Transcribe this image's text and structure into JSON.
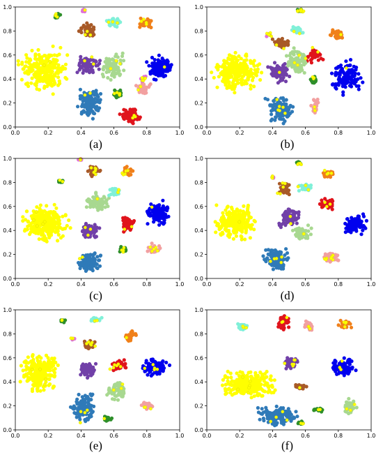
{
  "colors": {
    "yellow": "#ffff00",
    "blue": "#0000ee",
    "steel": "#2f7ab8",
    "purple": "#7140a8",
    "red": "#e0141c",
    "orange": "#f0801a",
    "brown": "#a85a28",
    "lightgreen": "#a8d890",
    "green": "#2e8f2a",
    "pink": "#f2a0a0",
    "aqua": "#80f0d8",
    "magenta": "#e070d8"
  },
  "chart_data": [
    {
      "type": "scatter",
      "caption": "(a)",
      "xlim": [
        0,
        1
      ],
      "ylim": [
        0,
        1
      ],
      "xticks": [
        "0.0",
        "0.2",
        "0.4",
        "0.6",
        "0.8",
        "1.0"
      ],
      "yticks": [
        "0.0",
        "0.2",
        "0.4",
        "0.6",
        "0.8",
        "1.0"
      ],
      "clusters": [
        {
          "color": "yellow",
          "cx": 0.17,
          "cy": 0.47,
          "rx": 0.17,
          "ry": 0.22,
          "n": 260
        },
        {
          "color": "blue",
          "cx": 0.88,
          "cy": 0.5,
          "rx": 0.1,
          "ry": 0.12,
          "n": 120
        },
        {
          "color": "steel",
          "cx": 0.45,
          "cy": 0.2,
          "rx": 0.09,
          "ry": 0.15,
          "n": 130
        },
        {
          "color": "purple",
          "cx": 0.44,
          "cy": 0.52,
          "rx": 0.08,
          "ry": 0.1,
          "n": 90
        },
        {
          "color": "red",
          "cx": 0.7,
          "cy": 0.09,
          "rx": 0.09,
          "ry": 0.07,
          "n": 70
        },
        {
          "color": "orange",
          "cx": 0.79,
          "cy": 0.87,
          "rx": 0.05,
          "ry": 0.06,
          "n": 40
        },
        {
          "color": "brown",
          "cx": 0.44,
          "cy": 0.8,
          "rx": 0.06,
          "ry": 0.08,
          "n": 50
        },
        {
          "color": "lightgreen",
          "cx": 0.6,
          "cy": 0.5,
          "rx": 0.08,
          "ry": 0.14,
          "n": 80
        },
        {
          "color": "green",
          "cx": 0.62,
          "cy": 0.28,
          "rx": 0.04,
          "ry": 0.04,
          "n": 20
        },
        {
          "color": "pink",
          "cx": 0.78,
          "cy": 0.32,
          "rx": 0.05,
          "ry": 0.06,
          "n": 35
        },
        {
          "color": "aqua",
          "cx": 0.6,
          "cy": 0.87,
          "rx": 0.06,
          "ry": 0.05,
          "n": 35
        },
        {
          "color": "magenta",
          "cx": 0.42,
          "cy": 0.97,
          "rx": 0.02,
          "ry": 0.02,
          "n": 8
        },
        {
          "color": "green",
          "cx": 0.25,
          "cy": 0.93,
          "rx": 0.03,
          "ry": 0.03,
          "n": 12
        },
        {
          "color": "magenta",
          "cx": 0.78,
          "cy": 0.4,
          "rx": 0.02,
          "ry": 0.03,
          "n": 8
        }
      ]
    },
    {
      "type": "scatter",
      "caption": "(b)",
      "xlim": [
        0,
        1
      ],
      "ylim": [
        0,
        1
      ],
      "xticks": [
        "0.0",
        "0.2",
        "0.4",
        "0.6",
        "0.8",
        "1.0"
      ],
      "yticks": [
        "0.0",
        "0.2",
        "0.4",
        "0.6",
        "0.8",
        "1.0"
      ],
      "clusters": [
        {
          "color": "yellow",
          "cx": 0.18,
          "cy": 0.46,
          "rx": 0.17,
          "ry": 0.2,
          "n": 260
        },
        {
          "color": "blue",
          "cx": 0.85,
          "cy": 0.42,
          "rx": 0.12,
          "ry": 0.17,
          "n": 130
        },
        {
          "color": "steel",
          "cx": 0.45,
          "cy": 0.15,
          "rx": 0.1,
          "ry": 0.14,
          "n": 130
        },
        {
          "color": "purple",
          "cx": 0.44,
          "cy": 0.46,
          "rx": 0.08,
          "ry": 0.1,
          "n": 90
        },
        {
          "color": "red",
          "cx": 0.66,
          "cy": 0.6,
          "rx": 0.06,
          "ry": 0.07,
          "n": 50
        },
        {
          "color": "orange",
          "cx": 0.79,
          "cy": 0.77,
          "rx": 0.05,
          "ry": 0.05,
          "n": 35
        },
        {
          "color": "brown",
          "cx": 0.45,
          "cy": 0.7,
          "rx": 0.07,
          "ry": 0.06,
          "n": 50
        },
        {
          "color": "lightgreen",
          "cx": 0.55,
          "cy": 0.55,
          "rx": 0.07,
          "ry": 0.15,
          "n": 80
        },
        {
          "color": "green",
          "cx": 0.65,
          "cy": 0.39,
          "rx": 0.03,
          "ry": 0.05,
          "n": 20
        },
        {
          "color": "pink",
          "cx": 0.66,
          "cy": 0.17,
          "rx": 0.03,
          "ry": 0.08,
          "n": 30
        },
        {
          "color": "aqua",
          "cx": 0.55,
          "cy": 0.81,
          "rx": 0.05,
          "ry": 0.04,
          "n": 25
        },
        {
          "color": "green",
          "cx": 0.57,
          "cy": 0.97,
          "rx": 0.03,
          "ry": 0.02,
          "n": 10
        },
        {
          "color": "magenta",
          "cx": 0.38,
          "cy": 0.77,
          "rx": 0.02,
          "ry": 0.02,
          "n": 8
        }
      ]
    },
    {
      "type": "scatter",
      "caption": "(c)",
      "xlim": [
        0,
        1
      ],
      "ylim": [
        0,
        1
      ],
      "xticks": [
        "0.0",
        "0.2",
        "0.4",
        "0.6",
        "0.8",
        "1.0"
      ],
      "yticks": [
        "0.0",
        "0.2",
        "0.4",
        "0.6",
        "0.8",
        "1.0"
      ],
      "clusters": [
        {
          "color": "yellow",
          "cx": 0.18,
          "cy": 0.46,
          "rx": 0.17,
          "ry": 0.2,
          "n": 260
        },
        {
          "color": "blue",
          "cx": 0.87,
          "cy": 0.54,
          "rx": 0.09,
          "ry": 0.13,
          "n": 120
        },
        {
          "color": "steel",
          "cx": 0.45,
          "cy": 0.14,
          "rx": 0.09,
          "ry": 0.1,
          "n": 110
        },
        {
          "color": "purple",
          "cx": 0.45,
          "cy": 0.4,
          "rx": 0.07,
          "ry": 0.08,
          "n": 80
        },
        {
          "color": "red",
          "cx": 0.68,
          "cy": 0.45,
          "rx": 0.05,
          "ry": 0.08,
          "n": 50
        },
        {
          "color": "orange",
          "cx": 0.68,
          "cy": 0.89,
          "rx": 0.05,
          "ry": 0.05,
          "n": 30
        },
        {
          "color": "brown",
          "cx": 0.48,
          "cy": 0.9,
          "rx": 0.05,
          "ry": 0.06,
          "n": 35
        },
        {
          "color": "lightgreen",
          "cx": 0.5,
          "cy": 0.63,
          "rx": 0.09,
          "ry": 0.1,
          "n": 80
        },
        {
          "color": "green",
          "cx": 0.66,
          "cy": 0.24,
          "rx": 0.03,
          "ry": 0.04,
          "n": 15
        },
        {
          "color": "pink",
          "cx": 0.84,
          "cy": 0.25,
          "rx": 0.05,
          "ry": 0.05,
          "n": 30
        },
        {
          "color": "aqua",
          "cx": 0.6,
          "cy": 0.72,
          "rx": 0.05,
          "ry": 0.04,
          "n": 25
        },
        {
          "color": "green",
          "cx": 0.28,
          "cy": 0.81,
          "rx": 0.03,
          "ry": 0.02,
          "n": 10
        },
        {
          "color": "magenta",
          "cx": 0.4,
          "cy": 0.99,
          "rx": 0.02,
          "ry": 0.01,
          "n": 6
        }
      ]
    },
    {
      "type": "scatter",
      "caption": "(d)",
      "xlim": [
        0,
        1
      ],
      "ylim": [
        0,
        1
      ],
      "xticks": [
        "0.0",
        "0.2",
        "0.4",
        "0.6",
        "0.8",
        "1.0"
      ],
      "yticks": [
        "0.0",
        "0.2",
        "0.4",
        "0.6",
        "0.8",
        "1.0"
      ],
      "clusters": [
        {
          "color": "yellow",
          "cx": 0.18,
          "cy": 0.47,
          "rx": 0.17,
          "ry": 0.18,
          "n": 260
        },
        {
          "color": "blue",
          "cx": 0.9,
          "cy": 0.45,
          "rx": 0.09,
          "ry": 0.1,
          "n": 110
        },
        {
          "color": "steel",
          "cx": 0.42,
          "cy": 0.16,
          "rx": 0.1,
          "ry": 0.12,
          "n": 120
        },
        {
          "color": "purple",
          "cx": 0.5,
          "cy": 0.5,
          "rx": 0.08,
          "ry": 0.09,
          "n": 80
        },
        {
          "color": "red",
          "cx": 0.73,
          "cy": 0.62,
          "rx": 0.07,
          "ry": 0.06,
          "n": 50
        },
        {
          "color": "orange",
          "cx": 0.74,
          "cy": 0.87,
          "rx": 0.05,
          "ry": 0.04,
          "n": 30
        },
        {
          "color": "brown",
          "cx": 0.47,
          "cy": 0.75,
          "rx": 0.05,
          "ry": 0.07,
          "n": 40
        },
        {
          "color": "lightgreen",
          "cx": 0.58,
          "cy": 0.38,
          "rx": 0.07,
          "ry": 0.08,
          "n": 60
        },
        {
          "color": "green",
          "cx": 0.56,
          "cy": 0.96,
          "rx": 0.03,
          "ry": 0.02,
          "n": 10
        },
        {
          "color": "pink",
          "cx": 0.76,
          "cy": 0.18,
          "rx": 0.07,
          "ry": 0.06,
          "n": 35
        },
        {
          "color": "aqua",
          "cx": 0.6,
          "cy": 0.76,
          "rx": 0.05,
          "ry": 0.04,
          "n": 25
        },
        {
          "color": "magenta",
          "cx": 0.4,
          "cy": 0.84,
          "rx": 0.02,
          "ry": 0.02,
          "n": 6
        }
      ]
    },
    {
      "type": "scatter",
      "caption": "(e)",
      "xlim": [
        0,
        1
      ],
      "ylim": [
        0,
        1
      ],
      "xticks": [
        "0.0",
        "0.2",
        "0.4",
        "0.6",
        "0.8",
        "1.0"
      ],
      "yticks": [
        "0.0",
        "0.2",
        "0.4",
        "0.6",
        "0.8",
        "1.0"
      ],
      "clusters": [
        {
          "color": "yellow",
          "cx": 0.15,
          "cy": 0.48,
          "rx": 0.14,
          "ry": 0.2,
          "n": 250
        },
        {
          "color": "blue",
          "cx": 0.85,
          "cy": 0.52,
          "rx": 0.11,
          "ry": 0.09,
          "n": 110
        },
        {
          "color": "steel",
          "cx": 0.42,
          "cy": 0.18,
          "rx": 0.1,
          "ry": 0.15,
          "n": 120
        },
        {
          "color": "purple",
          "cx": 0.44,
          "cy": 0.5,
          "rx": 0.07,
          "ry": 0.08,
          "n": 70
        },
        {
          "color": "red",
          "cx": 0.63,
          "cy": 0.54,
          "rx": 0.06,
          "ry": 0.06,
          "n": 45
        },
        {
          "color": "orange",
          "cx": 0.7,
          "cy": 0.78,
          "rx": 0.05,
          "ry": 0.05,
          "n": 30
        },
        {
          "color": "brown",
          "cx": 0.45,
          "cy": 0.71,
          "rx": 0.06,
          "ry": 0.05,
          "n": 40
        },
        {
          "color": "lightgreen",
          "cx": 0.62,
          "cy": 0.33,
          "rx": 0.07,
          "ry": 0.1,
          "n": 60
        },
        {
          "color": "green",
          "cx": 0.56,
          "cy": 0.1,
          "rx": 0.03,
          "ry": 0.03,
          "n": 15
        },
        {
          "color": "pink",
          "cx": 0.8,
          "cy": 0.2,
          "rx": 0.05,
          "ry": 0.04,
          "n": 30
        },
        {
          "color": "aqua",
          "cx": 0.49,
          "cy": 0.92,
          "rx": 0.04,
          "ry": 0.03,
          "n": 20
        },
        {
          "color": "green",
          "cx": 0.29,
          "cy": 0.91,
          "rx": 0.03,
          "ry": 0.02,
          "n": 10
        },
        {
          "color": "magenta",
          "cx": 0.35,
          "cy": 0.76,
          "rx": 0.02,
          "ry": 0.02,
          "n": 6
        }
      ]
    },
    {
      "type": "scatter",
      "caption": "(f)",
      "xlim": [
        0,
        1
      ],
      "ylim": [
        0,
        1
      ],
      "xticks": [
        "0.0",
        "0.2",
        "0.4",
        "0.6",
        "0.8",
        "1.0"
      ],
      "yticks": [
        "0.0",
        "0.2",
        "0.4",
        "0.6",
        "0.8",
        "1.0"
      ],
      "clusters": [
        {
          "color": "yellow",
          "cx": 0.25,
          "cy": 0.38,
          "rx": 0.2,
          "ry": 0.14,
          "n": 270
        },
        {
          "color": "blue",
          "cx": 0.83,
          "cy": 0.52,
          "rx": 0.08,
          "ry": 0.09,
          "n": 100
        },
        {
          "color": "steel",
          "cx": 0.43,
          "cy": 0.12,
          "rx": 0.15,
          "ry": 0.1,
          "n": 140
        },
        {
          "color": "purple",
          "cx": 0.51,
          "cy": 0.56,
          "rx": 0.06,
          "ry": 0.08,
          "n": 60
        },
        {
          "color": "red",
          "cx": 0.47,
          "cy": 0.9,
          "rx": 0.05,
          "ry": 0.09,
          "n": 50
        },
        {
          "color": "orange",
          "cx": 0.84,
          "cy": 0.88,
          "rx": 0.05,
          "ry": 0.04,
          "n": 30
        },
        {
          "color": "brown",
          "cx": 0.57,
          "cy": 0.36,
          "rx": 0.05,
          "ry": 0.04,
          "n": 30
        },
        {
          "color": "lightgreen",
          "cx": 0.87,
          "cy": 0.19,
          "rx": 0.05,
          "ry": 0.08,
          "n": 40
        },
        {
          "color": "green",
          "cx": 0.68,
          "cy": 0.17,
          "rx": 0.04,
          "ry": 0.03,
          "n": 20
        },
        {
          "color": "pink",
          "cx": 0.62,
          "cy": 0.86,
          "rx": 0.04,
          "ry": 0.05,
          "n": 30
        },
        {
          "color": "aqua",
          "cx": 0.22,
          "cy": 0.86,
          "rx": 0.04,
          "ry": 0.04,
          "n": 25
        },
        {
          "color": "green",
          "cx": 0.57,
          "cy": 0.06,
          "rx": 0.03,
          "ry": 0.02,
          "n": 10
        }
      ]
    }
  ]
}
